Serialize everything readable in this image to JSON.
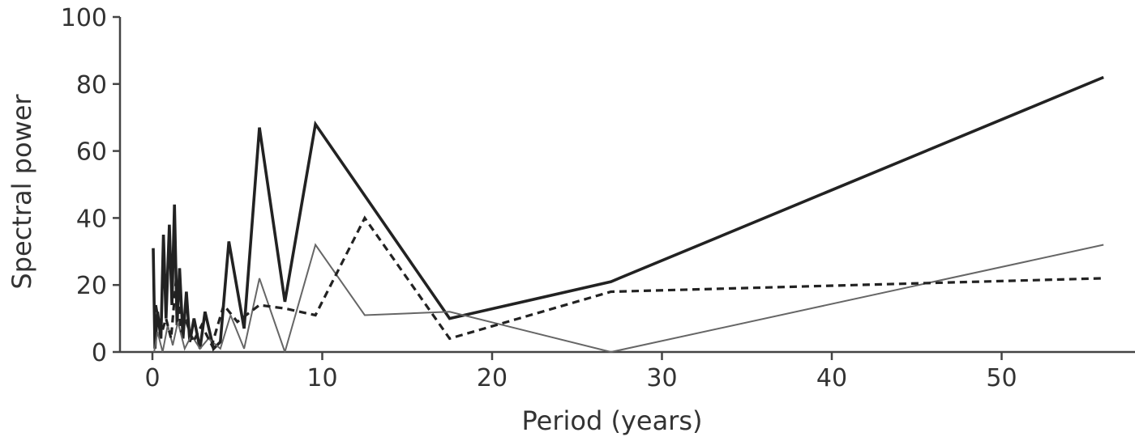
{
  "chart_data": {
    "type": "line",
    "title": "",
    "xlabel": "Period (years)",
    "ylabel": "Spectral power",
    "xlim": [
      -2,
      58
    ],
    "ylim": [
      0,
      100
    ],
    "xticks": [
      0,
      10,
      20,
      30,
      40,
      50
    ],
    "yticks": [
      0,
      20,
      40,
      60,
      80,
      100
    ],
    "grid": false,
    "legend": "none",
    "series": [
      {
        "style": "solid-thick",
        "color": "#222222",
        "x": [
          0.05,
          0.15,
          0.3,
          0.5,
          0.65,
          0.8,
          1.0,
          1.15,
          1.3,
          1.45,
          1.6,
          1.8,
          2.0,
          2.2,
          2.45,
          2.8,
          3.1,
          3.6,
          4.0,
          4.5,
          5.4,
          6.3,
          7.8,
          9.6,
          17.5,
          27.0,
          56.0
        ],
        "y": [
          31,
          1,
          12,
          4,
          35,
          10,
          38,
          14,
          44,
          8,
          25,
          4,
          18,
          3,
          10,
          1,
          12,
          1,
          3,
          33,
          7,
          67,
          15,
          68,
          10,
          21,
          82
        ]
      },
      {
        "style": "solid-thin",
        "color": "#666666",
        "x": [
          0.1,
          0.3,
          0.6,
          0.9,
          1.2,
          1.5,
          1.9,
          2.3,
          2.8,
          3.3,
          4.0,
          4.6,
          5.4,
          6.3,
          7.8,
          9.6,
          12.5,
          17.5,
          27.0,
          56.0
        ],
        "y": [
          0,
          6,
          0,
          8,
          2,
          9,
          1,
          5,
          1,
          4,
          1,
          11,
          1,
          22,
          0,
          32,
          11,
          12,
          0,
          32
        ]
      },
      {
        "style": "dashed",
        "color": "#222222",
        "x": [
          0.2,
          0.5,
          0.8,
          1.1,
          1.4,
          1.7,
          2.0,
          2.4,
          2.9,
          3.5,
          4.2,
          5.0,
          6.3,
          7.8,
          9.6,
          12.5,
          17.5,
          27.0,
          56.0
        ],
        "y": [
          14,
          5,
          10,
          4,
          22,
          6,
          9,
          3,
          8,
          2,
          14,
          9,
          14,
          13,
          11,
          40,
          4,
          18,
          22
        ]
      }
    ]
  }
}
